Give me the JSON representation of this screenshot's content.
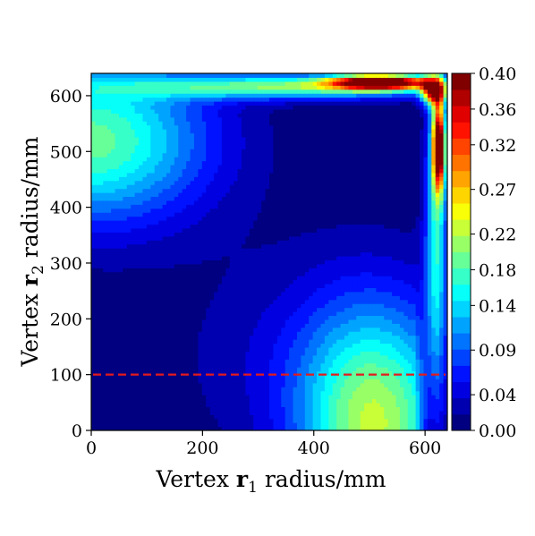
{
  "chart_data": {
    "type": "heatmap",
    "subtype": "filled-contour",
    "colormap": "jet",
    "x_domain": [
      0,
      640
    ],
    "y_domain": [
      0,
      640
    ],
    "xlabel": {
      "prefix": "Vertex ",
      "bold": "r",
      "sub": "1",
      "suffix": " radius/mm"
    },
    "ylabel": {
      "prefix": "Vertex ",
      "bold": "r",
      "sub": "2",
      "suffix": " radius/mm"
    },
    "xticks": [
      0,
      200,
      400,
      600
    ],
    "yticks": [
      0,
      100,
      200,
      300,
      400,
      500,
      600
    ],
    "colorbar": {
      "vmin": 0.0,
      "vmax": 0.4,
      "levels": 22,
      "tick_values": [
        0.0,
        0.04,
        0.09,
        0.14,
        0.18,
        0.22,
        0.27,
        0.32,
        0.36,
        0.4
      ],
      "tick_labels": [
        "0.00",
        "0.04",
        "0.09",
        "0.14",
        "0.18",
        "0.22",
        "0.27",
        "0.32",
        "0.36",
        "0.40"
      ]
    },
    "reference_line": {
      "axis": "y",
      "value": 100,
      "style": "dashed",
      "color": "#e41a1c"
    },
    "field_features": [
      {
        "x": 520,
        "y": 625,
        "peak": 0.4
      },
      {
        "x": 625,
        "y": 510,
        "peak": 0.38
      },
      {
        "x": 0,
        "y": 520,
        "peak": 0.19
      },
      {
        "x": 510,
        "y": 0,
        "peak": 0.2
      }
    ],
    "grid": false
  }
}
